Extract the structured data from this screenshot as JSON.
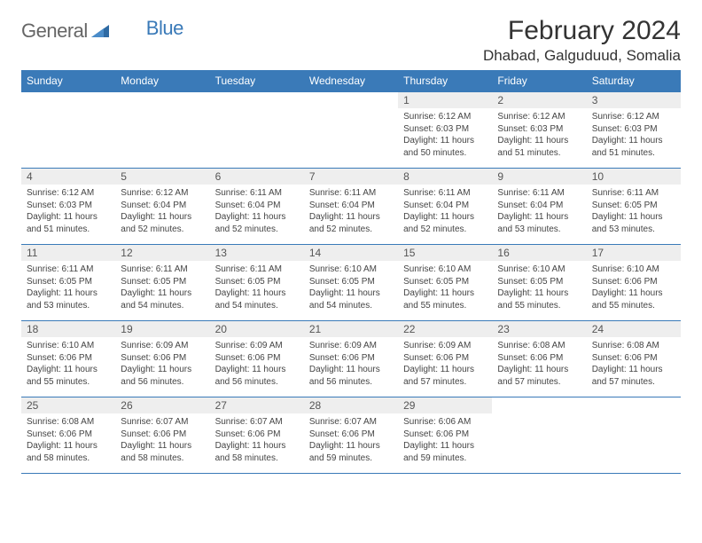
{
  "brand": {
    "main": "General",
    "sub": "Blue"
  },
  "title": "February 2024",
  "location": "Dhabad, Galguduud, Somalia",
  "colors": {
    "header_bg": "#3a7ab8",
    "header_fg": "#ffffff",
    "row_border": "#3a7ab8",
    "daynum_bg": "#eeeeee",
    "page_bg": "#ffffff"
  },
  "weekdays": [
    "Sunday",
    "Monday",
    "Tuesday",
    "Wednesday",
    "Thursday",
    "Friday",
    "Saturday"
  ],
  "weeks": [
    [
      {
        "n": "",
        "sr": "",
        "ss": "",
        "dl1": "",
        "dl2": ""
      },
      {
        "n": "",
        "sr": "",
        "ss": "",
        "dl1": "",
        "dl2": ""
      },
      {
        "n": "",
        "sr": "",
        "ss": "",
        "dl1": "",
        "dl2": ""
      },
      {
        "n": "",
        "sr": "",
        "ss": "",
        "dl1": "",
        "dl2": ""
      },
      {
        "n": "1",
        "sr": "Sunrise: 6:12 AM",
        "ss": "Sunset: 6:03 PM",
        "dl1": "Daylight: 11 hours",
        "dl2": "and 50 minutes."
      },
      {
        "n": "2",
        "sr": "Sunrise: 6:12 AM",
        "ss": "Sunset: 6:03 PM",
        "dl1": "Daylight: 11 hours",
        "dl2": "and 51 minutes."
      },
      {
        "n": "3",
        "sr": "Sunrise: 6:12 AM",
        "ss": "Sunset: 6:03 PM",
        "dl1": "Daylight: 11 hours",
        "dl2": "and 51 minutes."
      }
    ],
    [
      {
        "n": "4",
        "sr": "Sunrise: 6:12 AM",
        "ss": "Sunset: 6:03 PM",
        "dl1": "Daylight: 11 hours",
        "dl2": "and 51 minutes."
      },
      {
        "n": "5",
        "sr": "Sunrise: 6:12 AM",
        "ss": "Sunset: 6:04 PM",
        "dl1": "Daylight: 11 hours",
        "dl2": "and 52 minutes."
      },
      {
        "n": "6",
        "sr": "Sunrise: 6:11 AM",
        "ss": "Sunset: 6:04 PM",
        "dl1": "Daylight: 11 hours",
        "dl2": "and 52 minutes."
      },
      {
        "n": "7",
        "sr": "Sunrise: 6:11 AM",
        "ss": "Sunset: 6:04 PM",
        "dl1": "Daylight: 11 hours",
        "dl2": "and 52 minutes."
      },
      {
        "n": "8",
        "sr": "Sunrise: 6:11 AM",
        "ss": "Sunset: 6:04 PM",
        "dl1": "Daylight: 11 hours",
        "dl2": "and 52 minutes."
      },
      {
        "n": "9",
        "sr": "Sunrise: 6:11 AM",
        "ss": "Sunset: 6:04 PM",
        "dl1": "Daylight: 11 hours",
        "dl2": "and 53 minutes."
      },
      {
        "n": "10",
        "sr": "Sunrise: 6:11 AM",
        "ss": "Sunset: 6:05 PM",
        "dl1": "Daylight: 11 hours",
        "dl2": "and 53 minutes."
      }
    ],
    [
      {
        "n": "11",
        "sr": "Sunrise: 6:11 AM",
        "ss": "Sunset: 6:05 PM",
        "dl1": "Daylight: 11 hours",
        "dl2": "and 53 minutes."
      },
      {
        "n": "12",
        "sr": "Sunrise: 6:11 AM",
        "ss": "Sunset: 6:05 PM",
        "dl1": "Daylight: 11 hours",
        "dl2": "and 54 minutes."
      },
      {
        "n": "13",
        "sr": "Sunrise: 6:11 AM",
        "ss": "Sunset: 6:05 PM",
        "dl1": "Daylight: 11 hours",
        "dl2": "and 54 minutes."
      },
      {
        "n": "14",
        "sr": "Sunrise: 6:10 AM",
        "ss": "Sunset: 6:05 PM",
        "dl1": "Daylight: 11 hours",
        "dl2": "and 54 minutes."
      },
      {
        "n": "15",
        "sr": "Sunrise: 6:10 AM",
        "ss": "Sunset: 6:05 PM",
        "dl1": "Daylight: 11 hours",
        "dl2": "and 55 minutes."
      },
      {
        "n": "16",
        "sr": "Sunrise: 6:10 AM",
        "ss": "Sunset: 6:05 PM",
        "dl1": "Daylight: 11 hours",
        "dl2": "and 55 minutes."
      },
      {
        "n": "17",
        "sr": "Sunrise: 6:10 AM",
        "ss": "Sunset: 6:06 PM",
        "dl1": "Daylight: 11 hours",
        "dl2": "and 55 minutes."
      }
    ],
    [
      {
        "n": "18",
        "sr": "Sunrise: 6:10 AM",
        "ss": "Sunset: 6:06 PM",
        "dl1": "Daylight: 11 hours",
        "dl2": "and 55 minutes."
      },
      {
        "n": "19",
        "sr": "Sunrise: 6:09 AM",
        "ss": "Sunset: 6:06 PM",
        "dl1": "Daylight: 11 hours",
        "dl2": "and 56 minutes."
      },
      {
        "n": "20",
        "sr": "Sunrise: 6:09 AM",
        "ss": "Sunset: 6:06 PM",
        "dl1": "Daylight: 11 hours",
        "dl2": "and 56 minutes."
      },
      {
        "n": "21",
        "sr": "Sunrise: 6:09 AM",
        "ss": "Sunset: 6:06 PM",
        "dl1": "Daylight: 11 hours",
        "dl2": "and 56 minutes."
      },
      {
        "n": "22",
        "sr": "Sunrise: 6:09 AM",
        "ss": "Sunset: 6:06 PM",
        "dl1": "Daylight: 11 hours",
        "dl2": "and 57 minutes."
      },
      {
        "n": "23",
        "sr": "Sunrise: 6:08 AM",
        "ss": "Sunset: 6:06 PM",
        "dl1": "Daylight: 11 hours",
        "dl2": "and 57 minutes."
      },
      {
        "n": "24",
        "sr": "Sunrise: 6:08 AM",
        "ss": "Sunset: 6:06 PM",
        "dl1": "Daylight: 11 hours",
        "dl2": "and 57 minutes."
      }
    ],
    [
      {
        "n": "25",
        "sr": "Sunrise: 6:08 AM",
        "ss": "Sunset: 6:06 PM",
        "dl1": "Daylight: 11 hours",
        "dl2": "and 58 minutes."
      },
      {
        "n": "26",
        "sr": "Sunrise: 6:07 AM",
        "ss": "Sunset: 6:06 PM",
        "dl1": "Daylight: 11 hours",
        "dl2": "and 58 minutes."
      },
      {
        "n": "27",
        "sr": "Sunrise: 6:07 AM",
        "ss": "Sunset: 6:06 PM",
        "dl1": "Daylight: 11 hours",
        "dl2": "and 58 minutes."
      },
      {
        "n": "28",
        "sr": "Sunrise: 6:07 AM",
        "ss": "Sunset: 6:06 PM",
        "dl1": "Daylight: 11 hours",
        "dl2": "and 59 minutes."
      },
      {
        "n": "29",
        "sr": "Sunrise: 6:06 AM",
        "ss": "Sunset: 6:06 PM",
        "dl1": "Daylight: 11 hours",
        "dl2": "and 59 minutes."
      },
      {
        "n": "",
        "sr": "",
        "ss": "",
        "dl1": "",
        "dl2": ""
      },
      {
        "n": "",
        "sr": "",
        "ss": "",
        "dl1": "",
        "dl2": ""
      }
    ]
  ]
}
